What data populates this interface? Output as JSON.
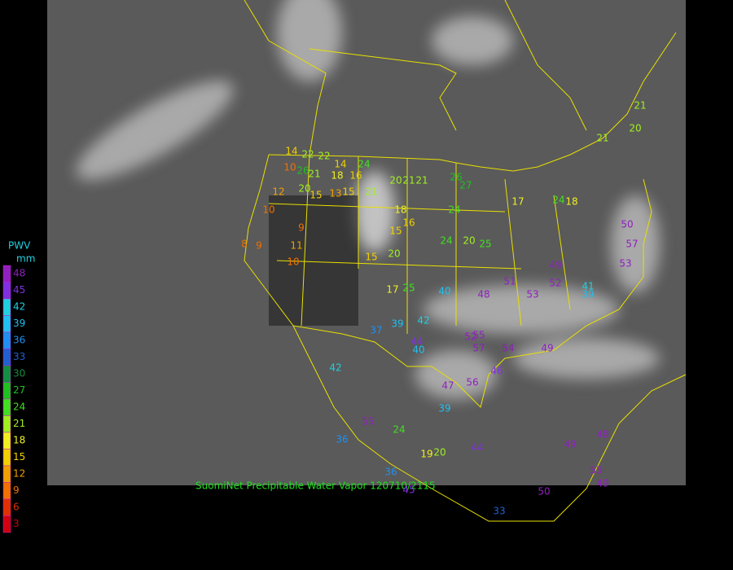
{
  "legend": {
    "title": "PWV",
    "unit": "mm",
    "ticks": [
      48,
      45,
      42,
      39,
      36,
      33,
      30,
      27,
      24,
      21,
      18,
      15,
      12,
      9,
      6,
      3
    ],
    "colors": [
      "#9020c0",
      "#8030e0",
      "#20d0e0",
      "#20c0f0",
      "#2090f0",
      "#2060d0",
      "#109040",
      "#20c020",
      "#40e020",
      "#a0f020",
      "#f0f020",
      "#f0d000",
      "#f0a000",
      "#f07000",
      "#e03000",
      "#d00010"
    ]
  },
  "caption": "SuomiNet Precipitable Water Vapor 120710/2115",
  "stations": [
    14,
    22,
    22,
    10,
    26,
    21,
    14,
    24,
    18,
    16,
    20,
    21,
    21,
    12,
    20,
    15,
    13,
    15,
    21,
    18,
    10,
    9,
    16,
    15,
    8,
    9,
    11,
    10,
    15,
    20,
    24,
    20,
    25,
    26,
    27,
    24,
    17,
    24,
    18,
    21,
    20,
    21,
    50,
    57,
    53,
    49,
    52,
    41,
    39,
    17,
    25,
    40,
    48,
    51,
    53,
    55,
    52,
    57,
    54,
    49,
    42,
    37,
    39,
    42,
    44,
    40,
    47,
    56,
    39,
    55,
    24,
    19,
    20,
    36,
    44,
    50,
    33,
    45,
    36,
    55,
    49,
    49,
    48,
    46
  ]
}
